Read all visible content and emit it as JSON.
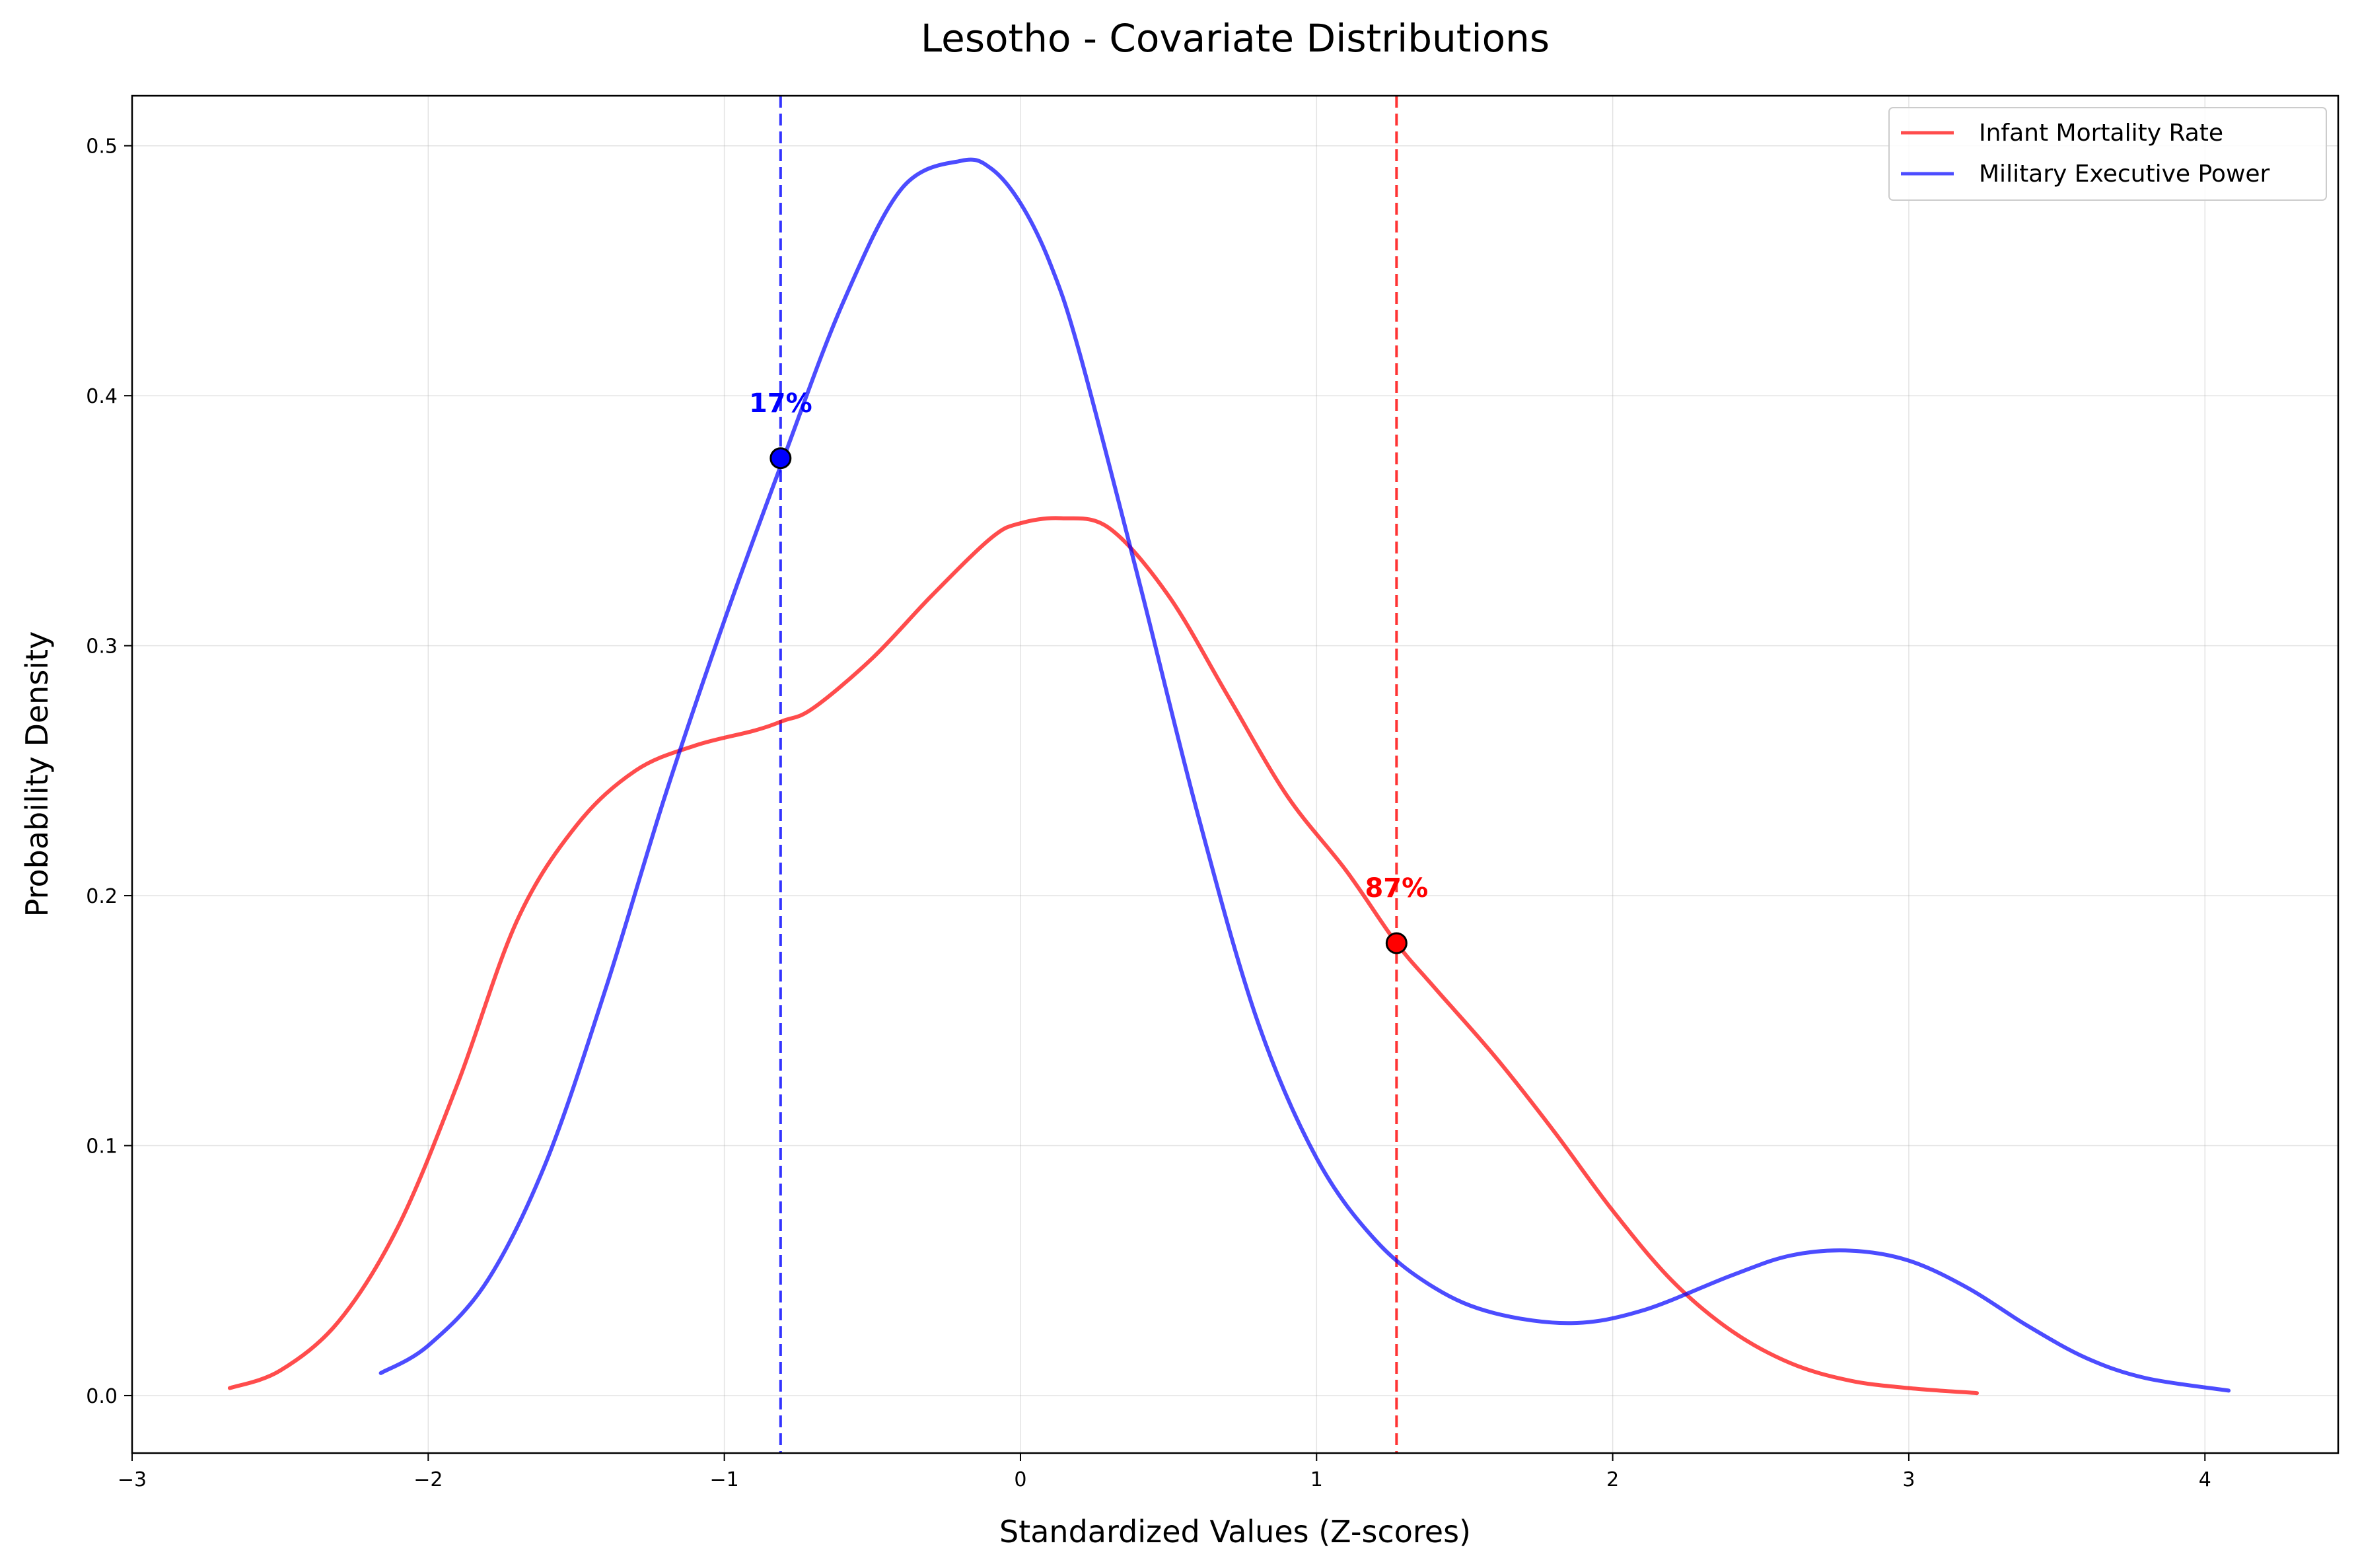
{
  "chart_data": {
    "type": "line",
    "title": "Lesotho - Covariate Distributions",
    "xlabel": "Standardized Values (Z-scores)",
    "ylabel": "Probability Density",
    "xlim": [
      -3,
      4.45
    ],
    "ylim": [
      -0.023,
      0.52
    ],
    "xticks": [
      -3,
      -2,
      -1,
      0,
      1,
      2,
      3,
      4
    ],
    "xtick_labels": [
      "−3",
      "−2",
      "−1",
      "0",
      "1",
      "2",
      "3",
      "4"
    ],
    "yticks": [
      0.0,
      0.1,
      0.2,
      0.3,
      0.4,
      0.5
    ],
    "ytick_labels": [
      "0.0",
      "0.1",
      "0.2",
      "0.3",
      "0.4",
      "0.5"
    ],
    "grid": true,
    "legend_position": "top-right",
    "series": [
      {
        "name": "Infant Mortality Rate",
        "color": "#ff0000",
        "x": [
          -2.67,
          -2.5,
          -2.3,
          -2.1,
          -1.9,
          -1.7,
          -1.5,
          -1.3,
          -1.1,
          -0.9,
          -0.8,
          -0.7,
          -0.5,
          -0.3,
          -0.1,
          0.0,
          0.14,
          0.3,
          0.5,
          0.7,
          0.9,
          1.1,
          1.27,
          1.4,
          1.6,
          1.8,
          2.0,
          2.2,
          2.4,
          2.6,
          2.8,
          3.0,
          3.23
        ],
        "y": [
          0.003,
          0.01,
          0.03,
          0.068,
          0.125,
          0.19,
          0.228,
          0.25,
          0.26,
          0.266,
          0.27,
          0.275,
          0.295,
          0.32,
          0.343,
          0.349,
          0.351,
          0.347,
          0.32,
          0.28,
          0.24,
          0.21,
          0.181,
          0.163,
          0.136,
          0.106,
          0.074,
          0.046,
          0.026,
          0.013,
          0.006,
          0.003,
          0.001
        ]
      },
      {
        "name": "Military Executive Power",
        "color": "#0000ff",
        "x": [
          -2.16,
          -2.0,
          -1.8,
          -1.6,
          -1.4,
          -1.2,
          -1.0,
          -0.8,
          -0.6,
          -0.4,
          -0.2,
          -0.1,
          0.0,
          0.1,
          0.2,
          0.4,
          0.6,
          0.8,
          1.0,
          1.2,
          1.4,
          1.6,
          1.86,
          2.1,
          2.4,
          2.6,
          2.8,
          3.0,
          3.2,
          3.4,
          3.6,
          3.8,
          4.08
        ],
        "y": [
          0.009,
          0.02,
          0.046,
          0.094,
          0.163,
          0.24,
          0.31,
          0.375,
          0.437,
          0.483,
          0.494,
          0.491,
          0.477,
          0.453,
          0.417,
          0.326,
          0.232,
          0.15,
          0.095,
          0.062,
          0.043,
          0.033,
          0.029,
          0.034,
          0.048,
          0.056,
          0.058,
          0.054,
          0.043,
          0.028,
          0.015,
          0.007,
          0.002
        ]
      }
    ],
    "vlines": [
      {
        "x": -0.81,
        "color": "#0000ff",
        "style": "dashed"
      },
      {
        "x": 1.27,
        "color": "#ff0000",
        "style": "dashed"
      }
    ],
    "points": [
      {
        "x": -0.81,
        "y": 0.375,
        "color": "#0000ff",
        "label": "17%"
      },
      {
        "x": 1.27,
        "y": 0.181,
        "color": "#ff0000",
        "label": "87%"
      }
    ]
  }
}
